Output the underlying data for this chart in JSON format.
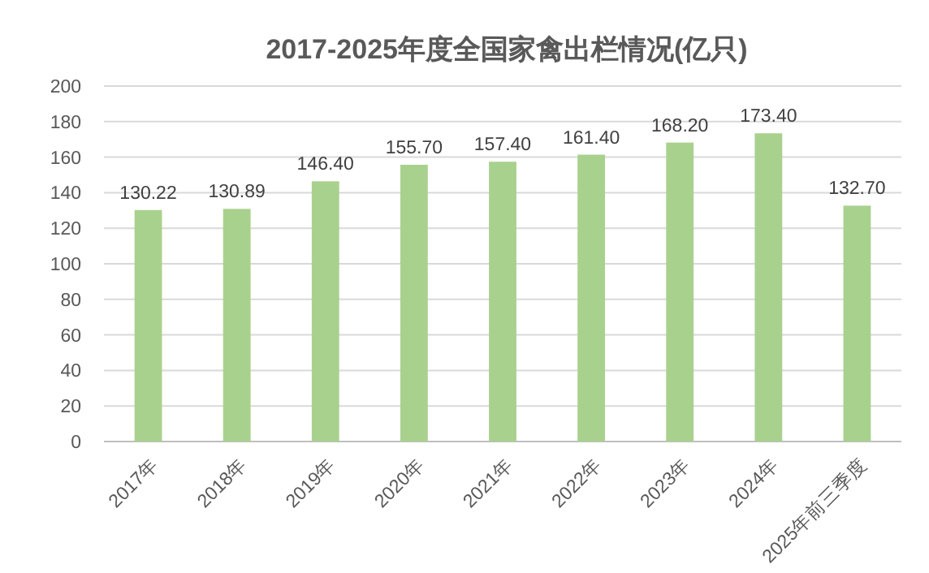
{
  "chart_data": {
    "type": "bar",
    "title": "2017-2025年度全国家禽出栏情况(亿只)",
    "categories": [
      "2017年",
      "2018年",
      "2019年",
      "2020年",
      "2021年",
      "2022年",
      "2023年",
      "2024年",
      "2025年前三季度"
    ],
    "values": [
      130.22,
      130.89,
      146.4,
      155.7,
      157.4,
      161.4,
      168.2,
      173.4,
      132.7
    ],
    "value_labels": [
      "130.22",
      "130.89",
      "146.40",
      "155.70",
      "157.40",
      "161.40",
      "168.20",
      "173.40",
      "132.70"
    ],
    "color": "#a9d18e",
    "ylim": [
      0,
      200
    ],
    "yticks": [
      0,
      20,
      40,
      60,
      80,
      100,
      120,
      140,
      160,
      180,
      200
    ],
    "grid": "y"
  }
}
